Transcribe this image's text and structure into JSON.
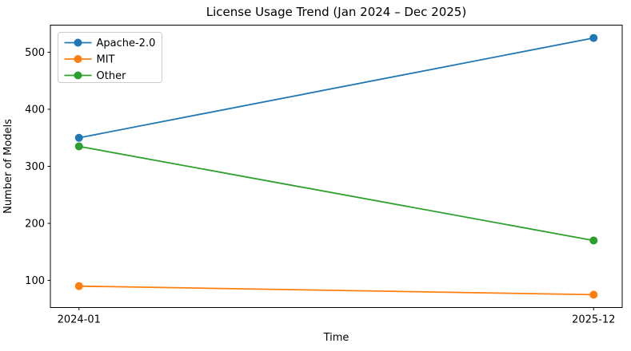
{
  "figure": {
    "title": "License Usage Trend (Jan 2024 – Dec 2025)",
    "xlabel": "Time",
    "ylabel": "Number of Models"
  },
  "chart_data": {
    "type": "line",
    "title": "License Usage Trend (Jan 2024 – Dec 2025)",
    "xlabel": "Time",
    "ylabel": "Number of Models",
    "categories": [
      "2024-01",
      "2025-12"
    ],
    "series": [
      {
        "name": "Apache-2.0",
        "color": "#1f77b4",
        "values": [
          350,
          525
        ]
      },
      {
        "name": "MIT",
        "color": "#ff7f0e",
        "values": [
          90,
          75
        ]
      },
      {
        "name": "Other",
        "color": "#2ca02c",
        "values": [
          335,
          170
        ]
      }
    ],
    "yticks": [
      100,
      200,
      300,
      400,
      500
    ],
    "ylim": [
      52.5,
      547.5
    ],
    "legend_position": "upper left",
    "grid": false,
    "marker": "o",
    "axis_color": "#000000",
    "legend_border_color": "#cccccc"
  }
}
